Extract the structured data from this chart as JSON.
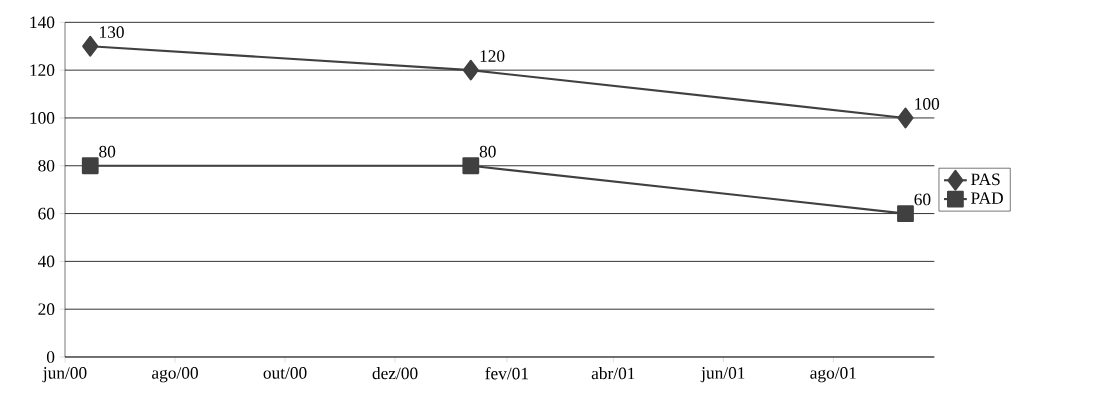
{
  "chart_data": {
    "type": "line",
    "x": [
      "2000-06-15",
      "2001-01-12",
      "2001-09-10"
    ],
    "series": [
      {
        "name": "PAS",
        "color": "#404040",
        "marker": "diamond",
        "values": [
          130,
          120,
          100
        ],
        "value_labels": [
          "130",
          "120",
          "100"
        ]
      },
      {
        "name": "PAD",
        "color": "#404040",
        "marker": "square",
        "values": [
          80,
          80,
          60
        ],
        "value_labels": [
          "80",
          "80",
          "60"
        ]
      }
    ],
    "xlim": [
      "2000-06-01",
      "2001-09-26"
    ],
    "xticks": [
      {
        "value": "2000-06-01",
        "label": "jun/00"
      },
      {
        "value": "2000-08-01",
        "label": "ago/00"
      },
      {
        "value": "2000-10-01",
        "label": "out/00"
      },
      {
        "value": "2000-12-01",
        "label": "dez/00"
      },
      {
        "value": "2001-02-01",
        "label": "fev/01"
      },
      {
        "value": "2001-04-01",
        "label": "abr/01"
      },
      {
        "value": "2001-06-01",
        "label": "jun/01"
      },
      {
        "value": "2001-08-01",
        "label": "ago/01"
      }
    ],
    "ylim": [
      0,
      140
    ],
    "yticks": [
      0,
      20,
      40,
      60,
      80,
      100,
      120,
      140
    ],
    "grid": "y",
    "legend": "right",
    "line_style": "solid"
  }
}
